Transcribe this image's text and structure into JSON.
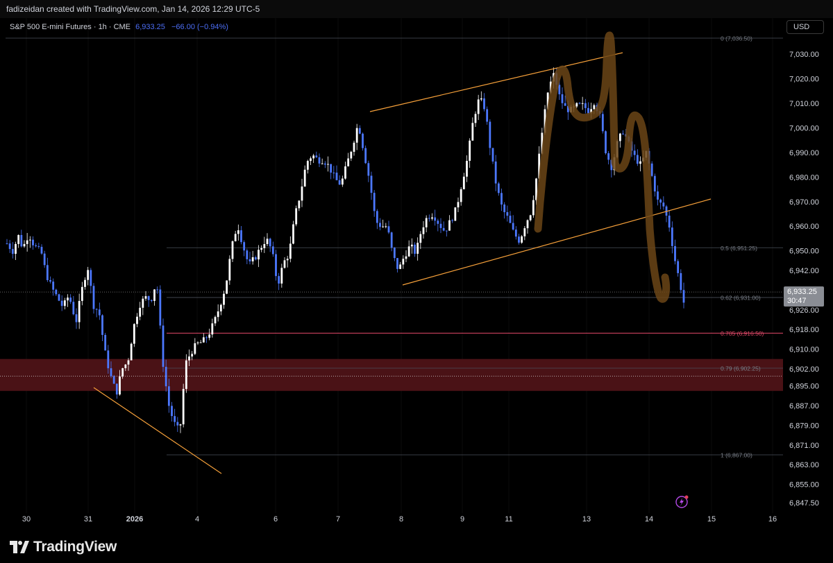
{
  "header": {
    "credit": "fadizeidan created with TradingView.com, Jan 14, 2026 12:29 UTC-5",
    "symbol": "S&P 500 E-mini Futures · 1h · CME",
    "last_price": "6,933.25",
    "change": "−66.00 (−0.94%)",
    "currency": "USD"
  },
  "price_badge": {
    "price": "6,933.25",
    "countdown": "30:47"
  },
  "footer": {
    "brand": "TradingView"
  },
  "colors": {
    "bull": "#ffffff",
    "bear": "#4c78ff",
    "fib_red": "#e04868",
    "trendline": "#f7a13a",
    "zone": "#4a1216",
    "marker": "#6b4516"
  },
  "chart_data": {
    "type": "candlestick",
    "title": "S&P 500 E-mini Futures · 1h · CME",
    "ylim": [
      6843,
      7041
    ],
    "y_ticks": [
      "7,030.00",
      "7,020.00",
      "7,010.00",
      "7,000.00",
      "6,990.00",
      "6,980.00",
      "6,970.00",
      "6,960.00",
      "6,950.00",
      "6,942.00",
      "6,926.00",
      "6,918.00",
      "6,910.00",
      "6,902.00",
      "6,895.00",
      "6,887.00",
      "6,879.00",
      "6,871.00",
      "6,863.00",
      "6,855.00",
      "6,847.50"
    ],
    "x_ticks": [
      "30",
      "31",
      "2026",
      "4",
      "6",
      "7",
      "8",
      "9",
      "11",
      "13",
      "14",
      "15",
      "16"
    ],
    "fib_levels": [
      {
        "label": "0 (7,036.50)",
        "value": 7036.5
      },
      {
        "label": "0.5 (6,951.25)",
        "value": 6951.25
      },
      {
        "label": "0.62 (6,931.00)",
        "value": 6931.0
      },
      {
        "label": "0.705 (6,916.50)",
        "value": 6916.5
      },
      {
        "label": "0.79 (6,902.25)",
        "value": 6902.25
      },
      {
        "label": "1 (6,867.00)",
        "value": 6867.0
      }
    ],
    "zone": [
      6893,
      6906
    ],
    "last_price": 6933.25,
    "close_path": [
      [
        0,
        6953
      ],
      [
        4,
        6950
      ],
      [
        8,
        6956
      ],
      [
        11,
        6951
      ],
      [
        15,
        6957
      ],
      [
        19,
        6952
      ],
      [
        24,
        6949
      ],
      [
        27,
        6941
      ],
      [
        31,
        6935
      ],
      [
        35,
        6931
      ],
      [
        39,
        6927
      ],
      [
        43,
        6932
      ],
      [
        48,
        6921
      ],
      [
        52,
        6934
      ],
      [
        56,
        6944
      ],
      [
        60,
        6928
      ],
      [
        64,
        6925
      ],
      [
        68,
        6909
      ],
      [
        72,
        6899
      ],
      [
        76,
        6892
      ],
      [
        80,
        6902
      ],
      [
        84,
        6905
      ],
      [
        88,
        6919
      ],
      [
        92,
        6928
      ],
      [
        96,
        6931
      ],
      [
        100,
        6930
      ],
      [
        104,
        6938
      ],
      [
        108,
        6906
      ],
      [
        112,
        6888
      ],
      [
        116,
        6880
      ],
      [
        120,
        6876
      ],
      [
        124,
        6904
      ],
      [
        128,
        6909
      ],
      [
        132,
        6912
      ],
      [
        136,
        6913
      ],
      [
        140,
        6916
      ],
      [
        144,
        6921
      ],
      [
        148,
        6928
      ],
      [
        152,
        6936
      ],
      [
        156,
        6951
      ],
      [
        160,
        6961
      ],
      [
        164,
        6952
      ],
      [
        168,
        6944
      ],
      [
        172,
        6947
      ],
      [
        176,
        6951
      ],
      [
        180,
        6955
      ],
      [
        184,
        6950
      ],
      [
        188,
        6936
      ],
      [
        192,
        6945
      ],
      [
        196,
        6949
      ],
      [
        200,
        6964
      ],
      [
        204,
        6974
      ],
      [
        208,
        6986
      ],
      [
        212,
        6989
      ],
      [
        216,
        6987
      ],
      [
        220,
        6987
      ],
      [
        224,
        6984
      ],
      [
        228,
        6979
      ],
      [
        232,
        6977
      ],
      [
        236,
        6985
      ],
      [
        240,
        6993
      ],
      [
        244,
        7002
      ],
      [
        248,
        6990
      ],
      [
        252,
        6978
      ],
      [
        256,
        6962
      ],
      [
        260,
        6960
      ],
      [
        264,
        6960
      ],
      [
        268,
        6948
      ],
      [
        272,
        6942
      ],
      [
        276,
        6948
      ],
      [
        280,
        6952
      ],
      [
        284,
        6949
      ],
      [
        288,
        6959
      ],
      [
        292,
        6964
      ],
      [
        296,
        6965
      ],
      [
        300,
        6961
      ],
      [
        304,
        6958
      ],
      [
        308,
        6962
      ],
      [
        312,
        6967
      ],
      [
        316,
        6978
      ],
      [
        320,
        6988
      ],
      [
        324,
        7004
      ],
      [
        328,
        7012
      ],
      [
        332,
        7008
      ],
      [
        336,
        6990
      ],
      [
        340,
        6976
      ],
      [
        344,
        6967
      ],
      [
        348,
        6963
      ],
      [
        352,
        6957
      ],
      [
        356,
        6954
      ],
      [
        360,
        6961
      ],
      [
        364,
        6966
      ],
      [
        368,
        6981
      ],
      [
        372,
        7000
      ],
      [
        376,
        7016
      ],
      [
        380,
        7022
      ],
      [
        384,
        7012
      ],
      [
        388,
        7008
      ],
      [
        392,
        7007
      ],
      [
        396,
        7009
      ],
      [
        400,
        7009
      ],
      [
        404,
        7007
      ],
      [
        408,
        7011
      ],
      [
        412,
        7004
      ],
      [
        416,
        6990
      ],
      [
        420,
        6984
      ],
      [
        424,
        6994
      ],
      [
        428,
        6999
      ],
      [
        432,
        6993
      ],
      [
        436,
        6988
      ],
      [
        440,
        6985
      ],
      [
        444,
        6990
      ],
      [
        448,
        6980
      ],
      [
        452,
        6970
      ],
      [
        456,
        6968
      ],
      [
        460,
        6960
      ],
      [
        464,
        6946
      ],
      [
        468,
        6935
      ],
      [
        470,
        6929
      ]
    ]
  }
}
